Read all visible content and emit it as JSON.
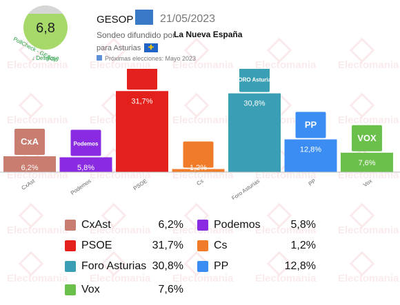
{
  "header": {
    "score": "6,8",
    "pollcheck_label": "PollCheck - GESOP",
    "desglose_label": "Desglose",
    "pollster": "GESOP",
    "date": "21/05/2023",
    "sondeo_label": "Sondeo difundido por",
    "medio": "La Nueva España",
    "para_label": "para Asturias",
    "next_elections": "Próximas elecciones: Mayo 2023"
  },
  "watermark": "Electomania",
  "colors": {
    "CxAst": "#c97d71",
    "Podemos": "#8a2be2",
    "PSOE": "#e3201b",
    "Cs": "#f07c29",
    "Foro Asturias": "#3a9fb4",
    "PP": "#3b8df3",
    "Vox": "#6bc04b"
  },
  "chart_data": {
    "type": "bar",
    "categories": [
      "CxAst",
      "Podemos",
      "PSOE",
      "Cs",
      "Foro Asturias",
      "PP",
      "Vox"
    ],
    "values": [
      6.2,
      5.8,
      31.7,
      1.2,
      30.8,
      12.8,
      7.6
    ],
    "value_labels": [
      "6,2%",
      "5,8%",
      "31,7%",
      "1,2%",
      "30,8%",
      "12,8%",
      "7,6%"
    ],
    "logo_texts": [
      "CxA",
      "Podemos",
      "",
      "",
      "FORO Asturias",
      "PP",
      "VOX"
    ],
    "ylim": [
      0,
      35
    ],
    "title": "",
    "xlabel": "",
    "ylabel": ""
  },
  "legend": [
    {
      "name": "CxAst",
      "value": "6,2%"
    },
    {
      "name": "Podemos",
      "value": "5,8%"
    },
    {
      "name": "PSOE",
      "value": "31,7%"
    },
    {
      "name": "Cs",
      "value": "1,2%"
    },
    {
      "name": "Foro Asturias",
      "value": "30,8%"
    },
    {
      "name": "PP",
      "value": "12,8%"
    },
    {
      "name": "Vox",
      "value": "7,6%"
    }
  ]
}
